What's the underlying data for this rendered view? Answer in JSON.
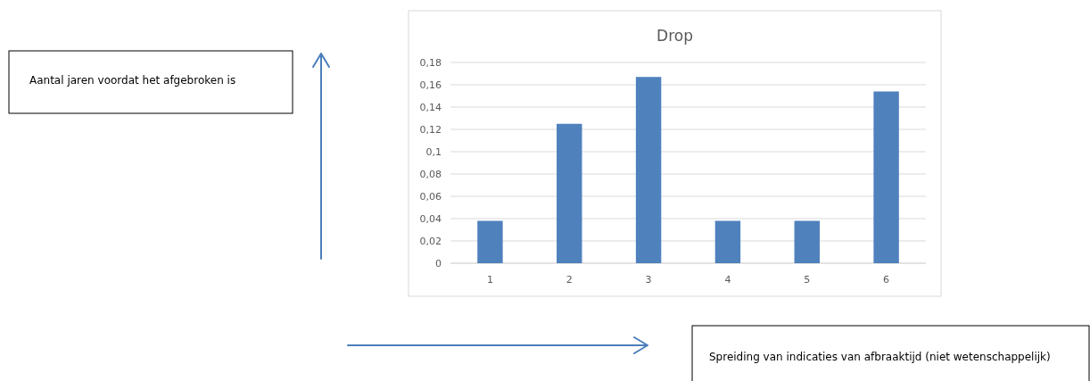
{
  "chart_data": {
    "type": "bar",
    "title": "Drop",
    "annotations": [
      "Aantal jaren voordat het afgebroken is",
      "Spreiding van indicaties van afbraaktijd (niet wetenschappelijk)"
    ],
    "categories": [
      "1",
      "2",
      "3",
      "4",
      "5",
      "6"
    ],
    "values": [
      0.038,
      0.125,
      0.167,
      0.038,
      0.038,
      0.154
    ],
    "color": "#4f81bd",
    "ylim": [
      0,
      0.18
    ],
    "yticks": [
      0,
      {
        "value": 0.02,
        "label": "0,02"
      },
      {
        "value": 0.04,
        "label": "0,04"
      },
      {
        "value": 0.06,
        "label": "0,06"
      },
      {
        "value": 0.08,
        "label": "0,08"
      },
      {
        "value": 0.1,
        "label": "0,1"
      },
      {
        "value": 0.12,
        "label": "0,12"
      },
      {
        "value": 0.14,
        "label": "0,14"
      },
      {
        "value": 0.16,
        "label": "0,16"
      },
      {
        "value": 0.18,
        "label": "0,18"
      }
    ],
    "grid": "y"
  }
}
